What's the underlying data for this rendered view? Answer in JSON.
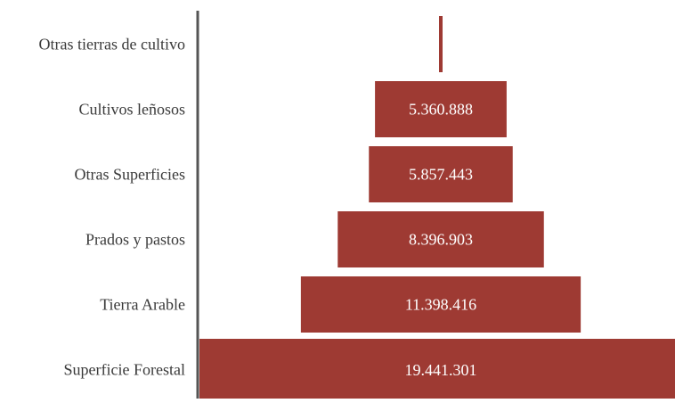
{
  "chart_data": {
    "type": "bar",
    "orientation": "horizontal",
    "layout": "funnel-centered",
    "categories": [
      "Otras tierras de cultivo",
      "Cultivos leñosos",
      "Otras Superficies",
      "Prados y pastos",
      "Tierra Arable",
      "Superficie Forestal"
    ],
    "values": [
      90000,
      5360888,
      5857443,
      8396903,
      11398416,
      19441301
    ],
    "data_labels": [
      "",
      "5.360.888",
      "5.857.443",
      "8.396.903",
      "11.398.416",
      "19.441.301"
    ],
    "title": "",
    "xlabel": "",
    "ylabel": "",
    "grid": false,
    "legend": "none",
    "colors": {
      "bar": "#9e3a33",
      "label_text": "#ffffff",
      "category_text": "#3a3a3a",
      "axis": "#555555"
    }
  }
}
